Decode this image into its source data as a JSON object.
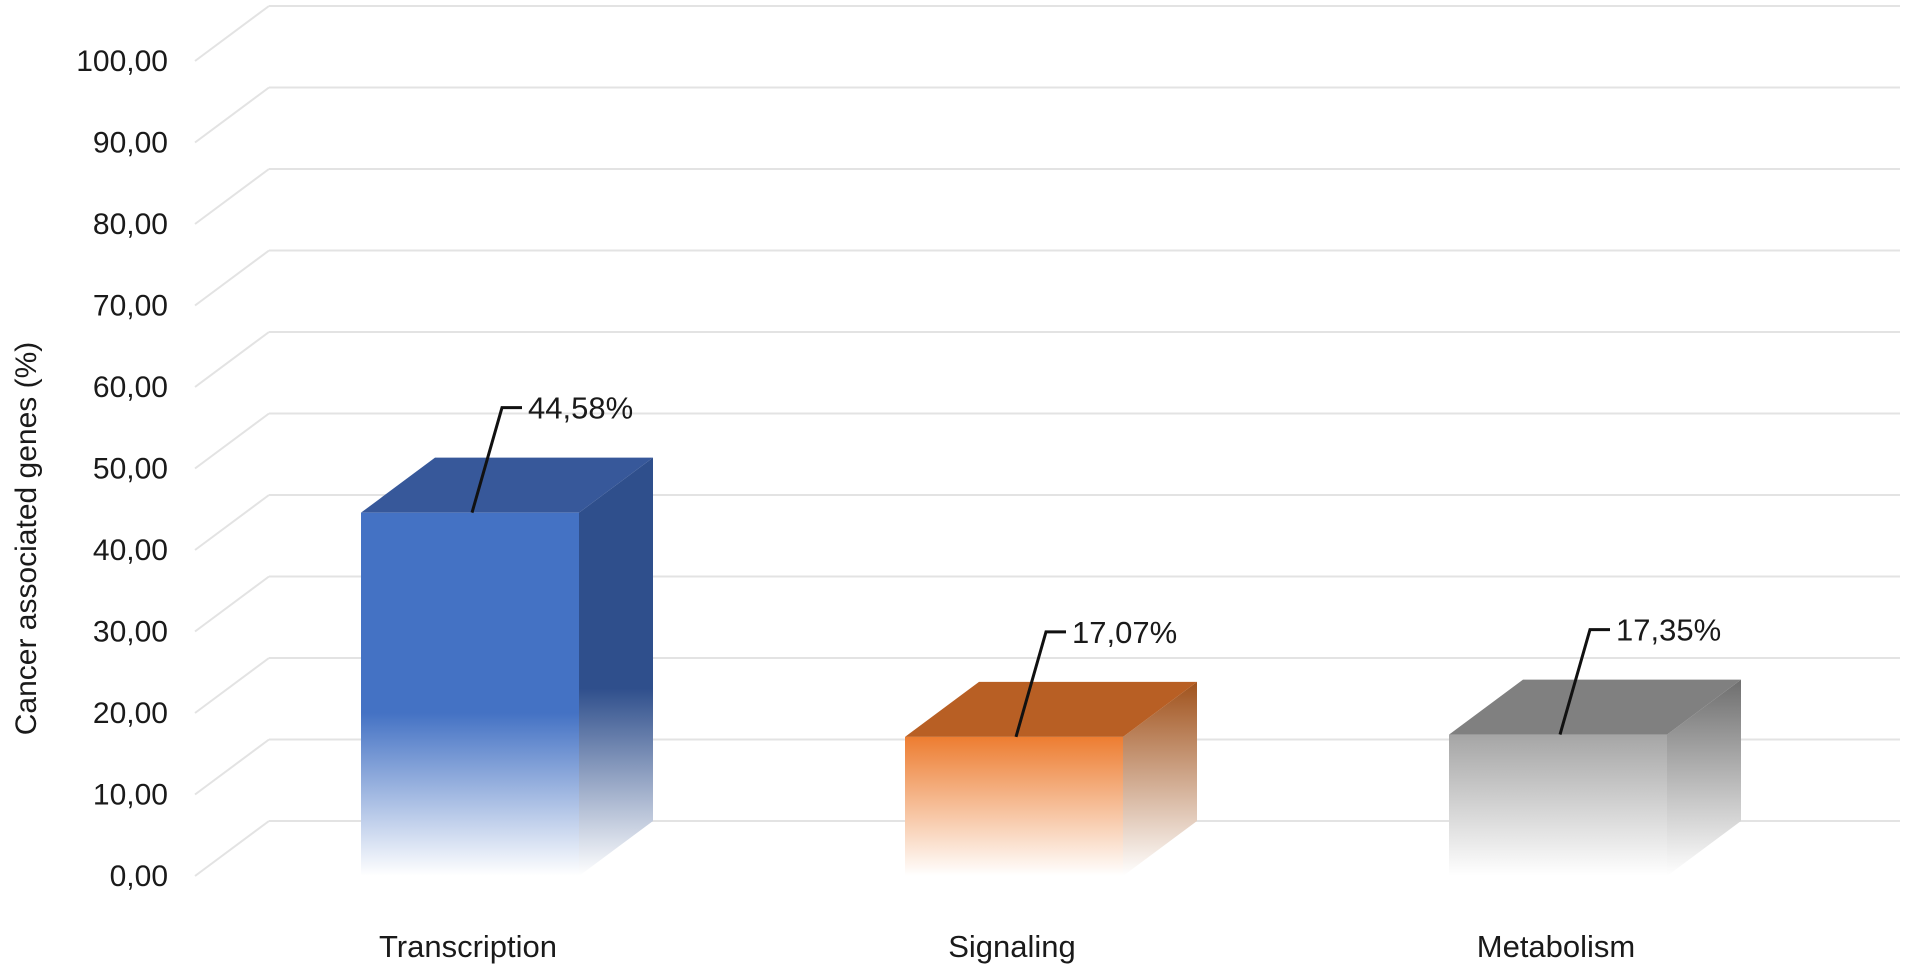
{
  "chart_data": {
    "type": "bar",
    "categories": [
      "Transcription",
      "Signaling",
      "Metabolism"
    ],
    "values": [
      44.58,
      17.07,
      17.35
    ],
    "data_labels": [
      "44,58%",
      "17,07%",
      "17,35%"
    ],
    "ylabel": "Cancer associated genes (%)",
    "xlabel": "",
    "ylim": [
      0,
      100
    ],
    "y_ticks": [
      0,
      10,
      20,
      30,
      40,
      50,
      60,
      70,
      80,
      90,
      100
    ],
    "y_tick_labels": [
      "0,00",
      "10,00",
      "20,00",
      "30,00",
      "40,00",
      "50,00",
      "60,00",
      "70,00",
      "80,00",
      "90,00",
      "100,00"
    ],
    "grid": true,
    "style": "3d-bar",
    "colors": {
      "Transcription": {
        "front": "#4472c4",
        "side": "#2f4f8c",
        "top": "#37589a"
      },
      "Signaling": {
        "front": "#ed7d31",
        "side": "#a0521c",
        "top": "#b85f24"
      },
      "Metabolism": {
        "front": "#a5a5a5",
        "side": "#6e6e6e",
        "top": "#808080"
      }
    }
  }
}
